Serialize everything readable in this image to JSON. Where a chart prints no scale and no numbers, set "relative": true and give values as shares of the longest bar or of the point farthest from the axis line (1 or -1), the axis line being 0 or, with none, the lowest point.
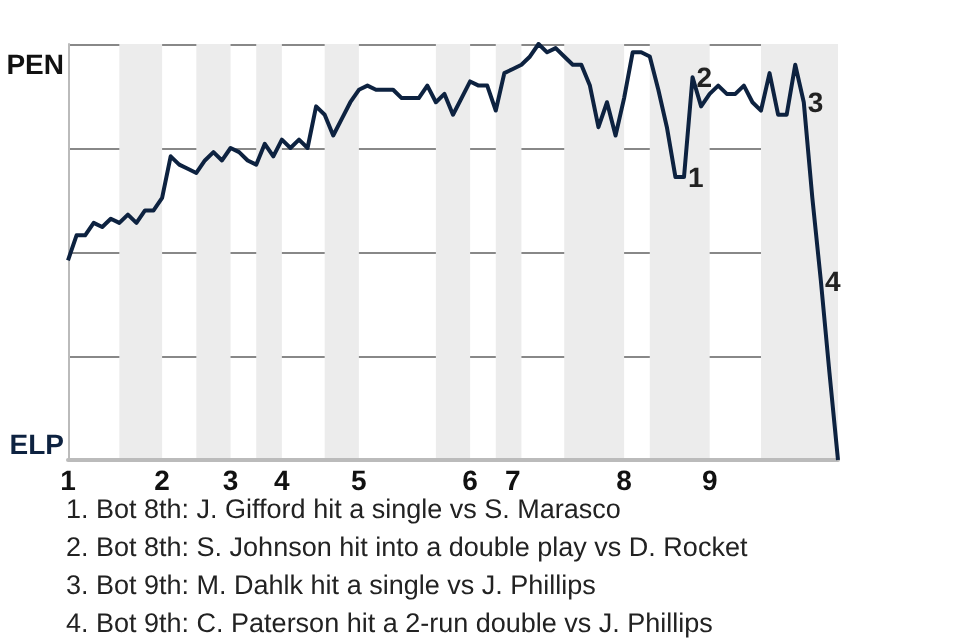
{
  "chart_data": {
    "type": "line",
    "categories": [
      "1",
      null,
      null,
      null,
      null,
      null,
      null,
      null,
      null,
      null,
      null,
      "2",
      null,
      null,
      null,
      null,
      null,
      null,
      null,
      "3",
      null,
      null,
      null,
      null,
      null,
      "4",
      null,
      null,
      null,
      null,
      null,
      null,
      null,
      null,
      "5",
      null,
      null,
      null,
      null,
      null,
      null,
      null,
      null,
      null,
      null,
      null,
      null,
      "6",
      null,
      null,
      null,
      null,
      "7",
      null,
      null,
      null,
      null,
      null,
      null,
      null,
      null,
      null,
      null,
      null,
      null,
      "8",
      null,
      null,
      null,
      null,
      null,
      null,
      null,
      null,
      null,
      "9",
      null,
      null,
      null,
      null,
      null,
      null,
      null,
      null,
      null,
      null,
      null,
      null,
      null,
      null,
      null
    ],
    "series": [
      {
        "color": "#0d2240",
        "values": [
          0.48,
          0.54,
          0.54,
          0.57,
          0.56,
          0.58,
          0.57,
          0.59,
          0.57,
          0.6,
          0.6,
          0.63,
          0.73,
          0.71,
          0.7,
          0.69,
          0.72,
          0.74,
          0.72,
          0.75,
          0.74,
          0.72,
          0.71,
          0.76,
          0.73,
          0.77,
          0.75,
          0.77,
          0.75,
          0.85,
          0.83,
          0.78,
          0.82,
          0.86,
          0.89,
          0.9,
          0.89,
          0.89,
          0.89,
          0.87,
          0.87,
          0.87,
          0.9,
          0.86,
          0.88,
          0.83,
          0.87,
          0.91,
          0.9,
          0.9,
          0.84,
          0.93,
          0.94,
          0.95,
          0.97,
          1,
          0.98,
          0.99,
          0.97,
          0.95,
          0.95,
          0.9,
          0.8,
          0.86,
          0.78,
          0.87,
          0.98,
          0.98,
          0.97,
          0.89,
          0.8,
          0.68,
          0.68,
          0.92,
          0.85,
          0.88,
          0.9,
          0.88,
          0.88,
          0.9,
          0.86,
          0.84,
          0.93,
          0.83,
          0.83,
          0.95,
          0.86,
          0.63,
          0.43,
          0.21,
          0
        ]
      }
    ],
    "relative": true,
    "grid": "y",
    "marker": "none",
    "annotations": [
      {
        "text": "1",
        "y": 0.68
      },
      {
        "text": "2",
        "y": 0.92
      },
      {
        "text": "3",
        "y": 0.86
      },
      {
        "text": "4",
        "y": 0.43
      },
      "PEN",
      "ELP",
      "1. Bot 8th: J. Gifford hit a single vs S. Marasco",
      "2. Bot 8th: S. Johnson hit into a double play vs D. Rocket",
      "3. Bot 9th: M. Dahlk hit a single vs J. Phillips",
      "4. Bot 9th: C. Paterson hit a 2-run double vs J. Phillips"
    ]
  }
}
